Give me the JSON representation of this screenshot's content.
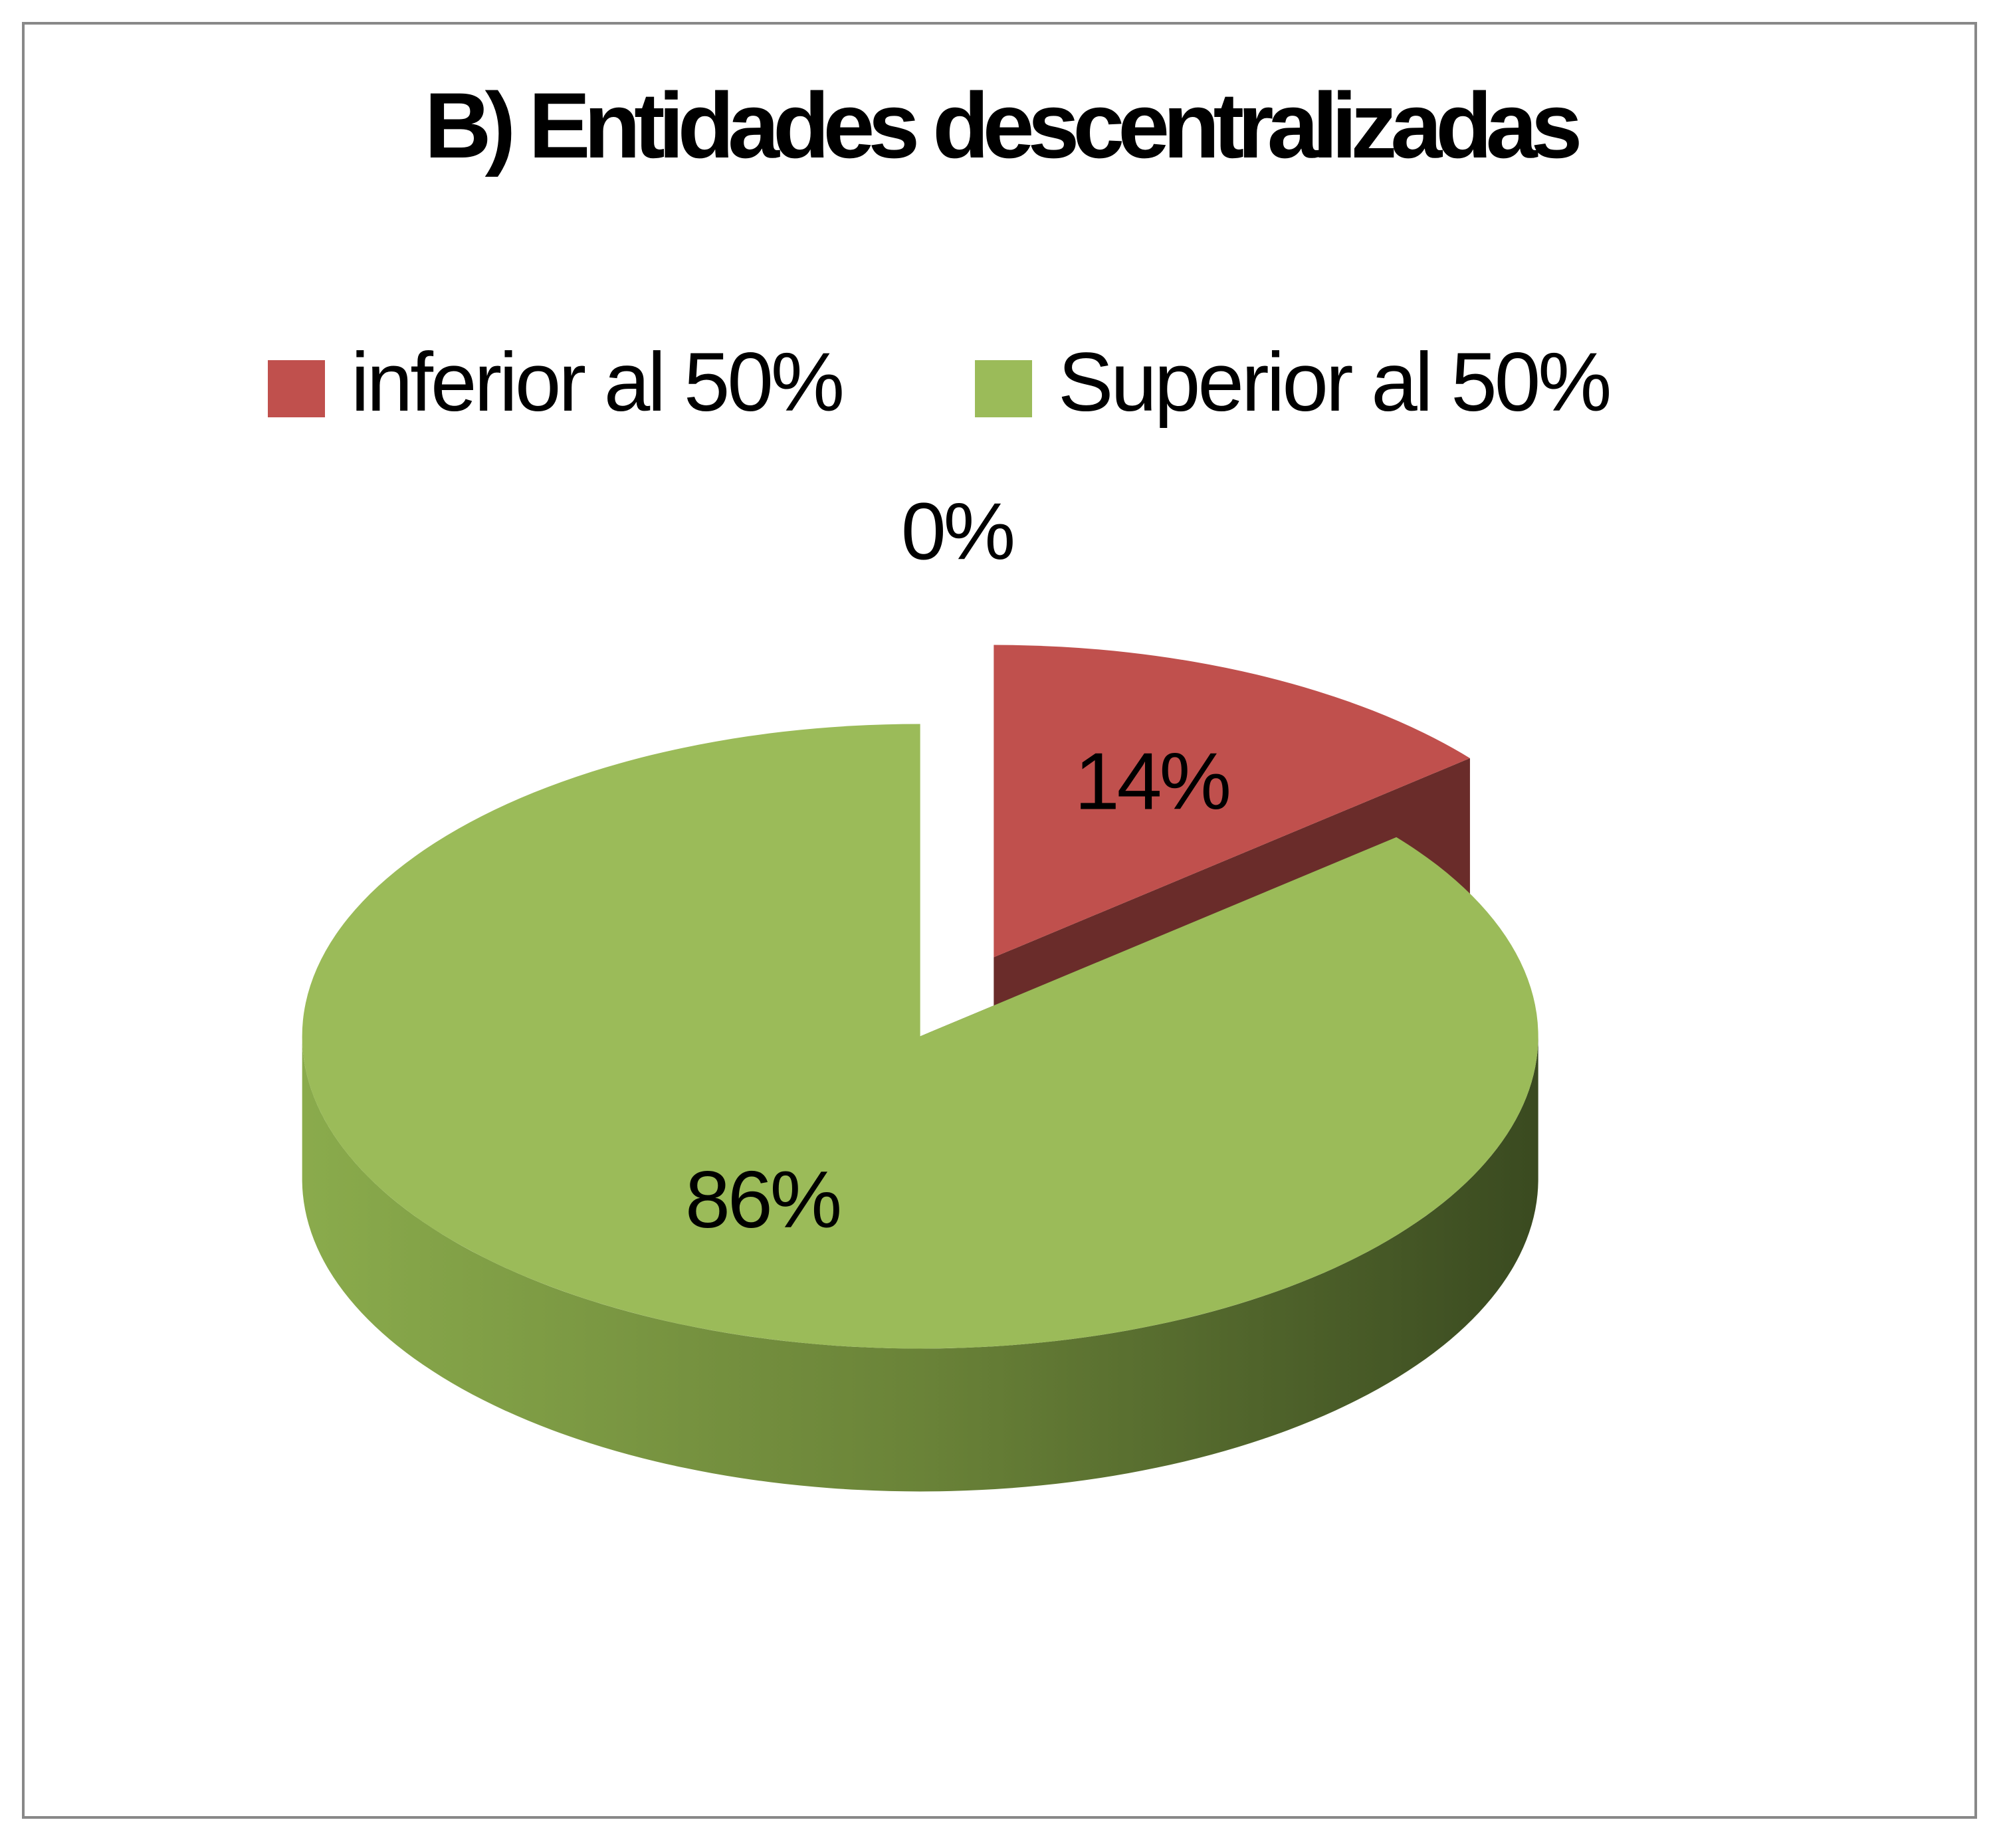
{
  "chart_data": {
    "type": "pie3d",
    "title": "B)  Entidades descentralizadas",
    "categories": [
      null,
      "inferior al 50%",
      "Superior al 50%"
    ],
    "values": [
      0,
      14,
      86
    ],
    "value_labels": [
      "0%",
      "14%",
      "86%"
    ],
    "colors": [
      "#4f81bd",
      "#c0504d",
      "#9bbb59"
    ],
    "legend": "top"
  }
}
